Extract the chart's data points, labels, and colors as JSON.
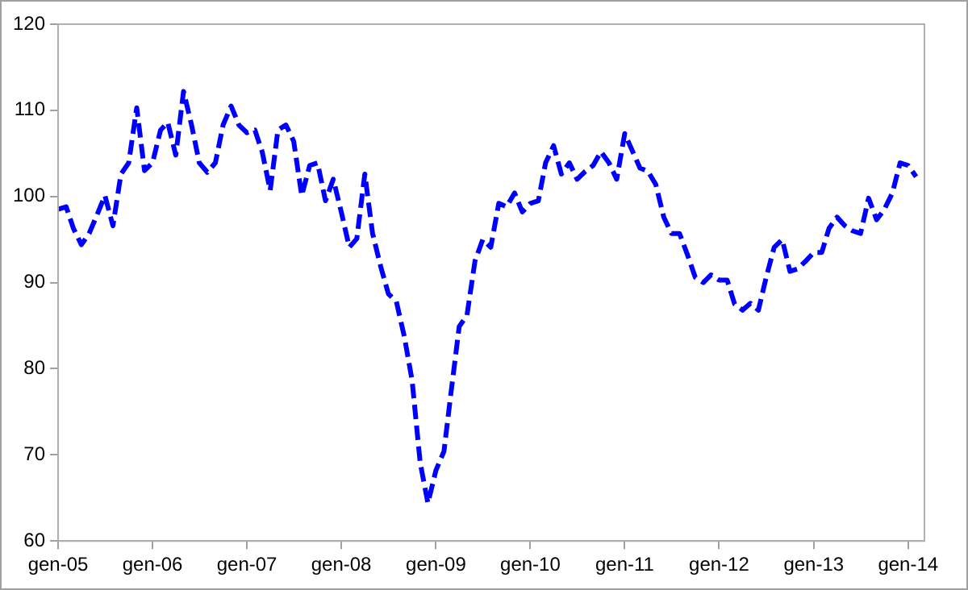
{
  "chart_data": {
    "type": "line",
    "x": [
      "2005-01",
      "2005-02",
      "2005-03",
      "2005-04",
      "2005-05",
      "2005-06",
      "2005-07",
      "2005-08",
      "2005-09",
      "2005-10",
      "2005-11",
      "2005-12",
      "2006-01",
      "2006-02",
      "2006-03",
      "2006-04",
      "2006-05",
      "2006-06",
      "2006-07",
      "2006-08",
      "2006-09",
      "2006-10",
      "2006-11",
      "2006-12",
      "2007-01",
      "2007-02",
      "2007-03",
      "2007-04",
      "2007-05",
      "2007-06",
      "2007-07",
      "2007-08",
      "2007-09",
      "2007-10",
      "2007-11",
      "2007-12",
      "2008-01",
      "2008-02",
      "2008-03",
      "2008-04",
      "2008-05",
      "2008-06",
      "2008-07",
      "2008-08",
      "2008-09",
      "2008-10",
      "2008-11",
      "2008-12",
      "2009-01",
      "2009-02",
      "2009-03",
      "2009-04",
      "2009-05",
      "2009-06",
      "2009-07",
      "2009-08",
      "2009-09",
      "2009-10",
      "2009-11",
      "2009-12",
      "2010-01",
      "2010-02",
      "2010-03",
      "2010-04",
      "2010-05",
      "2010-06",
      "2010-07",
      "2010-08",
      "2010-09",
      "2010-10",
      "2010-11",
      "2010-12",
      "2011-01",
      "2011-02",
      "2011-03",
      "2011-04",
      "2011-05",
      "2011-06",
      "2011-07",
      "2011-08",
      "2011-09",
      "2011-10",
      "2011-11",
      "2011-12",
      "2012-01",
      "2012-02",
      "2012-03",
      "2012-04",
      "2012-05",
      "2012-06",
      "2012-07",
      "2012-08",
      "2012-09",
      "2012-10",
      "2012-11",
      "2012-12",
      "2013-01",
      "2013-02",
      "2013-03",
      "2013-04",
      "2013-05",
      "2013-06",
      "2013-07",
      "2013-08",
      "2013-09",
      "2013-10",
      "2013-11",
      "2013-12",
      "2014-01",
      "2014-02"
    ],
    "series": [
      {
        "color": "#0000ff",
        "values": [
          98.5,
          98.8,
          96.3,
          94.4,
          95.7,
          97.9,
          100.1,
          96.6,
          102.6,
          103.9,
          110.3,
          103,
          103.9,
          107.7,
          108.6,
          104.8,
          112.2,
          108.3,
          103.9,
          102.8,
          103.9,
          108.3,
          110.5,
          108.3,
          107.4,
          107.7,
          105.2,
          100.7,
          107.7,
          108.3,
          106.4,
          100.1,
          103.6,
          103.9,
          99.5,
          102,
          98.2,
          94.1,
          95.1,
          102.6,
          95.7,
          91.9,
          88.7,
          87.8,
          83.7,
          78.6,
          69.1,
          64.4,
          68.2,
          70.4,
          77.4,
          84.9,
          86.2,
          92.5,
          95,
          94.1,
          99.2,
          98.8,
          100.4,
          98.2,
          99.2,
          99.5,
          103.9,
          105.9,
          102.6,
          103.9,
          102,
          102.9,
          103.6,
          105.2,
          103.9,
          102,
          107.3,
          105.2,
          103.3,
          102.9,
          101.4,
          97.6,
          95.7,
          95.7,
          93.2,
          90.6,
          90,
          90.9,
          90.3,
          90.3,
          87.5,
          86.8,
          87.6,
          86.8,
          90.6,
          94.1,
          95,
          91.3,
          91.6,
          92.5,
          93.5,
          93.5,
          96.3,
          97.6,
          96.6,
          96,
          95.7,
          99.8,
          97.3,
          98.5,
          100.4,
          103.9,
          103.6,
          102.3
        ]
      }
    ],
    "xlim": [
      "2005-01",
      "2014-03-05"
    ],
    "xticks": [
      {
        "value": "2005-01",
        "label": "gen-05"
      },
      {
        "value": "2006-01",
        "label": "gen-06"
      },
      {
        "value": "2007-01",
        "label": "gen-07"
      },
      {
        "value": "2008-01",
        "label": "gen-08"
      },
      {
        "value": "2009-01",
        "label": "gen-09"
      },
      {
        "value": "2010-01",
        "label": "gen-10"
      },
      {
        "value": "2011-01",
        "label": "gen-11"
      },
      {
        "value": "2012-01",
        "label": "gen-12"
      },
      {
        "value": "2013-01",
        "label": "gen-13"
      },
      {
        "value": "2014-01",
        "label": "gen-14"
      }
    ],
    "ylim": [
      60,
      120
    ],
    "yticks": [
      60,
      70,
      80,
      90,
      100,
      110,
      120
    ],
    "grid": false,
    "legend": false,
    "marker": "none",
    "line_style": "dashed"
  }
}
